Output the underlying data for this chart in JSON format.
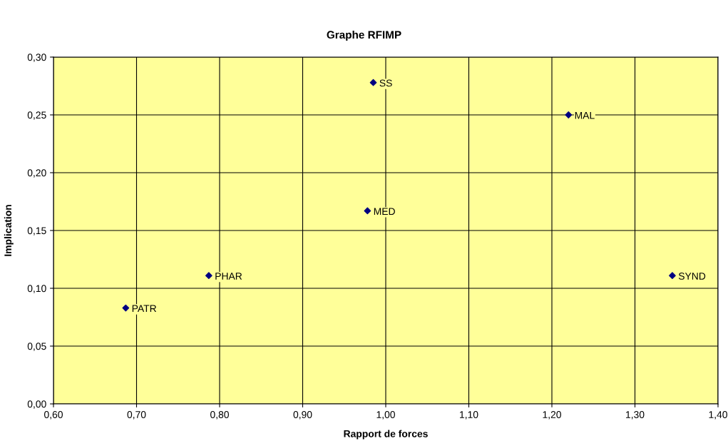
{
  "chart_data": {
    "type": "scatter",
    "title": "Graphe RFIMP",
    "xlabel": "Rapport de forces",
    "ylabel": "Implication",
    "x": [
      0.985,
      1.22,
      0.978,
      0.787,
      0.687,
      1.345
    ],
    "series": [
      {
        "color": "#000080",
        "values": [
          0.278,
          0.25,
          0.167,
          0.111,
          0.083,
          0.111
        ]
      }
    ],
    "annotations": [
      {
        "text": "SS",
        "x": 0.985,
        "y": 0.278
      },
      {
        "text": "MAL",
        "x": 1.22,
        "y": 0.25
      },
      {
        "text": "MED",
        "x": 0.978,
        "y": 0.167
      },
      {
        "text": "PHAR",
        "x": 0.787,
        "y": 0.111
      },
      {
        "text": "PATR",
        "x": 0.687,
        "y": 0.083
      },
      {
        "text": "SYND",
        "x": 1.345,
        "y": 0.111
      }
    ],
    "xlim": [
      0.6,
      1.4
    ],
    "xticks": [
      {
        "value": 0.6,
        "label": "0,60"
      },
      {
        "value": 0.7,
        "label": "0,70"
      },
      {
        "value": 0.8,
        "label": "0,80"
      },
      {
        "value": 0.9,
        "label": "0,90"
      },
      {
        "value": 1.0,
        "label": "1,00"
      },
      {
        "value": 1.1,
        "label": "1,10"
      },
      {
        "value": 1.2,
        "label": "1,20"
      },
      {
        "value": 1.3,
        "label": "1,30"
      },
      {
        "value": 1.4,
        "label": "1,40"
      }
    ],
    "ylim": [
      0,
      0.3
    ],
    "yticks": [
      {
        "value": 0,
        "label": "0,00"
      },
      {
        "value": 0.05,
        "label": "0,05"
      },
      {
        "value": 0.1,
        "label": "0,10"
      },
      {
        "value": 0.15,
        "label": "0,15"
      },
      {
        "value": 0.2,
        "label": "0,20"
      },
      {
        "value": 0.25,
        "label": "0,25"
      },
      {
        "value": 0.3,
        "label": "0,30"
      }
    ],
    "grid": true,
    "marker": "diamond"
  }
}
